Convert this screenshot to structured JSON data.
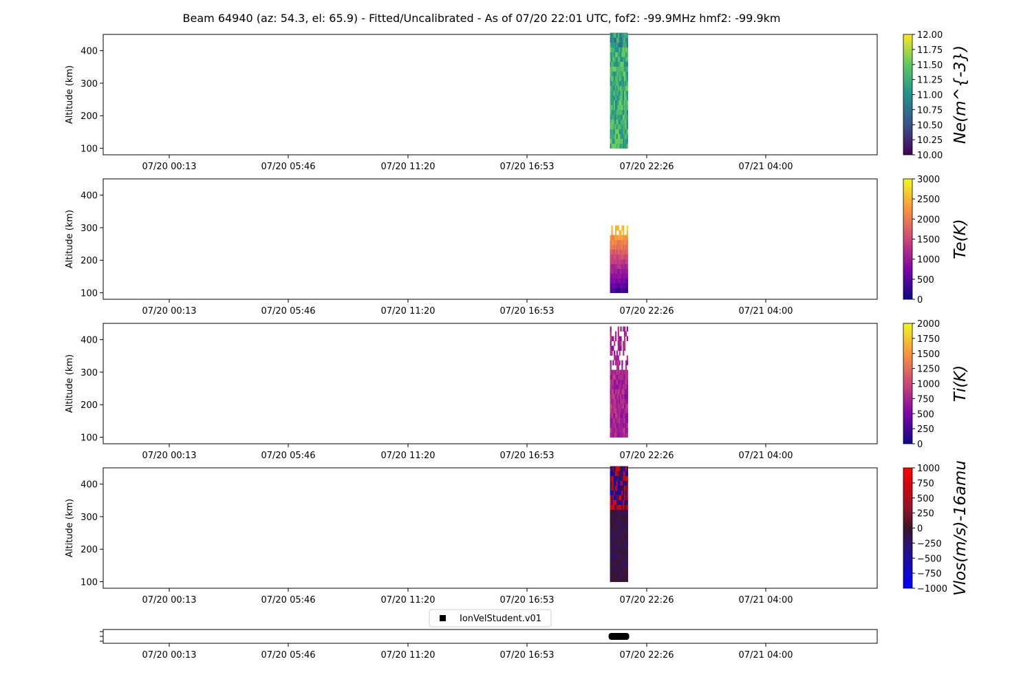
{
  "title": "Beam 64940 (az: 54.3, el: 65.9) - Fitted/Uncalibrated - As of 07/20 22:01 UTC, fof2: -99.9MHz  hmf2: -99.9km",
  "x_tick_labels": [
    "07/20 00:13",
    "07/20 05:46",
    "07/20 11:20",
    "07/20 16:53",
    "07/20 22:26",
    "07/21 04:00"
  ],
  "chart_data": [
    {
      "type": "heatmap",
      "ylabel": "Altitude (km)",
      "ylim": [
        80,
        450
      ],
      "y_ticks": [
        100,
        200,
        300,
        400
      ],
      "colorbar": {
        "label": "Ne(m^{-3})",
        "cmap": "viridis",
        "range": [
          10,
          12
        ],
        "ticks": [
          "10.00",
          "10.25",
          "10.50",
          "10.75",
          "11.00",
          "11.25",
          "11.50",
          "11.75",
          "12.00"
        ]
      },
      "data_block": {
        "x_start": "07/20 20:45",
        "x_end": "07/20 21:35",
        "alt_bottom": 100,
        "alt_top": 450,
        "typical_value": "about 11.0-11.5"
      }
    },
    {
      "type": "heatmap",
      "ylabel": "Altitude (km)",
      "ylim": [
        80,
        450
      ],
      "y_ticks": [
        100,
        200,
        300,
        400
      ],
      "colorbar": {
        "label": "Te(K)",
        "cmap": "plasma",
        "range": [
          0,
          3000
        ],
        "ticks": [
          "0",
          "500",
          "1000",
          "1500",
          "2000",
          "2500",
          "3000"
        ]
      },
      "data_block": {
        "x_start": "07/20 20:45",
        "x_end": "07/20 21:35",
        "alt_bottom": 100,
        "alt_top": 295,
        "typical_value": "about 500 near 100 km rising to 2500 near 280 km"
      }
    },
    {
      "type": "heatmap",
      "ylabel": "Altitude (km)",
      "ylim": [
        80,
        450
      ],
      "y_ticks": [
        100,
        200,
        300,
        400
      ],
      "colorbar": {
        "label": "Ti(K)",
        "cmap": "plasma",
        "range": [
          0,
          2000
        ],
        "ticks": [
          "0",
          "250",
          "500",
          "750",
          "1000",
          "1250",
          "1500",
          "1750",
          "2000"
        ]
      },
      "data_block": {
        "x_start": "07/20 20:45",
        "x_end": "07/20 21:35",
        "alt_bottom": 100,
        "alt_top": 430,
        "typical_value": "about 500-800"
      }
    },
    {
      "type": "heatmap",
      "ylabel": "Altitude (km)",
      "ylim": [
        80,
        450
      ],
      "y_ticks": [
        100,
        200,
        300,
        400
      ],
      "colorbar": {
        "label": "Vlos(m/s)-16amu",
        "cmap": "bwr",
        "range": [
          -1000,
          1000
        ],
        "ticks": [
          "−1000",
          "−750",
          "−500",
          "−250",
          "0",
          "250",
          "500",
          "750",
          "1000"
        ]
      },
      "data_block": {
        "x_start": "07/20 20:45",
        "x_end": "07/20 21:35",
        "alt_bottom": 100,
        "alt_top": 450,
        "typical_value": "near 0, mixed positive/negative above 300 km"
      }
    }
  ],
  "timeline": {
    "legend_label": "IonVelStudent.v01",
    "marker_color": "#000000",
    "segment": {
      "x_start": "07/20 20:45",
      "x_end": "07/20 21:35"
    }
  }
}
